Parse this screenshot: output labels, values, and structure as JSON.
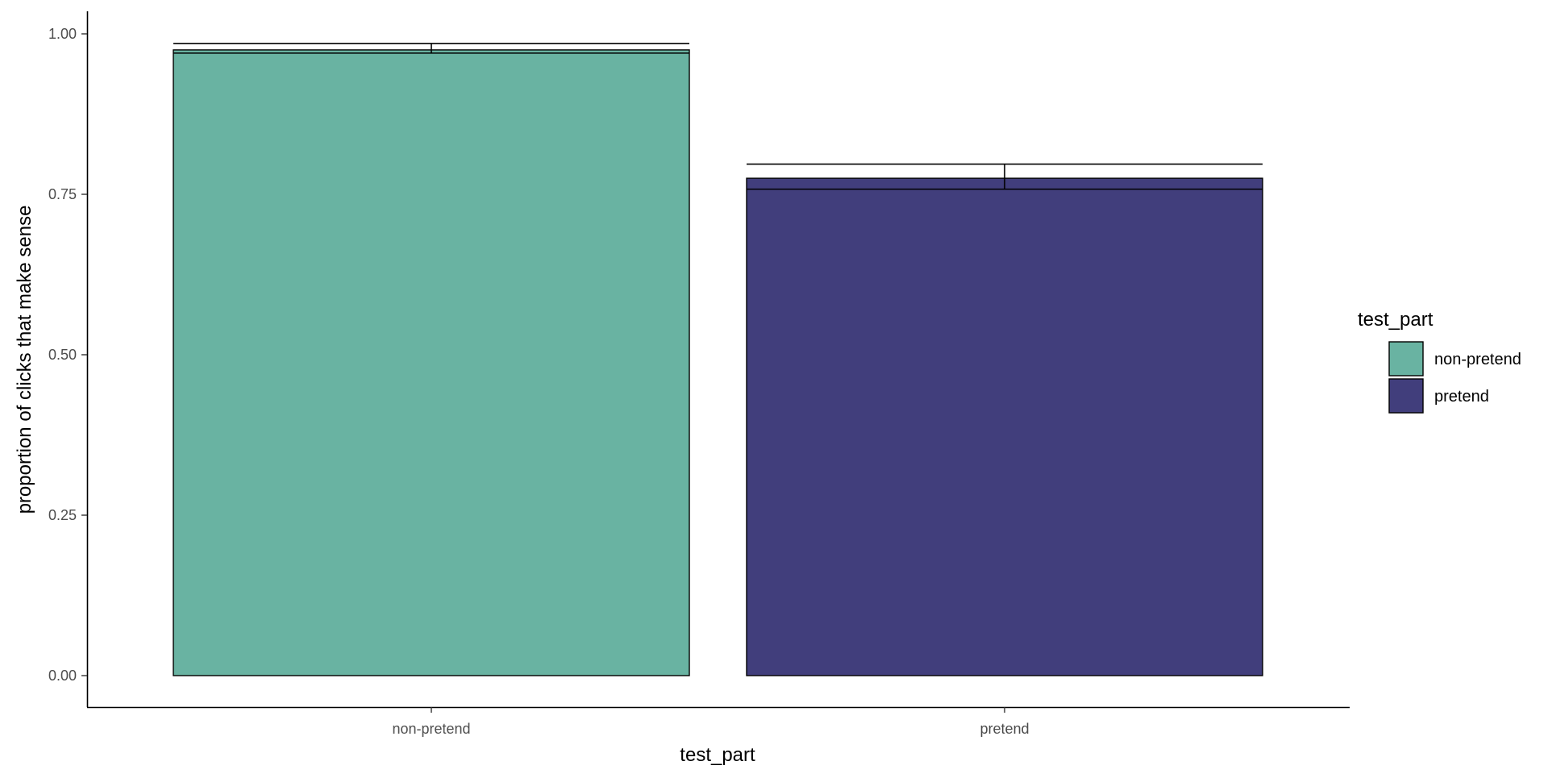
{
  "chart_data": {
    "type": "bar",
    "title": "",
    "xlabel": "test_part",
    "ylabel": "proportion of clicks that make sense",
    "categories": [
      "non-pretend",
      "pretend"
    ],
    "values": [
      0.975,
      0.775
    ],
    "error_bars": [
      {
        "category": "non-pretend",
        "lower": 0.97,
        "upper": 0.985
      },
      {
        "category": "pretend",
        "lower": 0.758,
        "upper": 0.797
      }
    ],
    "ylim": [
      0,
      1
    ],
    "yticks": [
      0.0,
      0.25,
      0.5,
      0.75,
      1.0
    ],
    "ytick_labels": [
      "0.00",
      "0.25",
      "0.50",
      "0.75",
      "1.00"
    ],
    "colors": {
      "non-pretend": "#69b3a2",
      "pretend": "#413e7c"
    },
    "grid": false,
    "legend": {
      "title": "test_part",
      "position": "right",
      "entries": [
        "non-pretend",
        "pretend"
      ]
    }
  }
}
